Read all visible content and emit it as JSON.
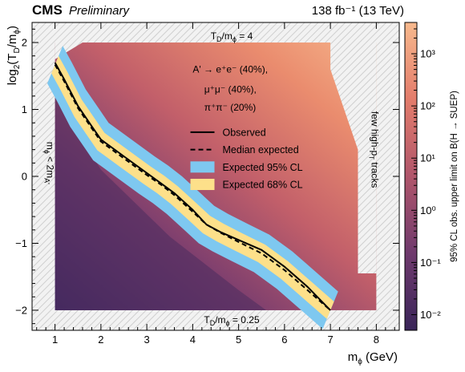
{
  "chart_data": {
    "type": "heatmap",
    "header": {
      "experiment": "CMS",
      "status": "Preliminary",
      "lumi": "138 fb⁻¹ (13 TeV)"
    },
    "xlabel": "m_ϕ (GeV)",
    "ylabel": "log₂(T_D/m_ϕ)",
    "zlabel": "95% CL obs. upper limit on B(H → SUEP)",
    "xlim": [
      0.5,
      8.5
    ],
    "ylim": [
      -2.3,
      2.3
    ],
    "zlim_log10": [
      -2.3,
      3.6
    ],
    "x_ticks": [
      1,
      2,
      3,
      4,
      5,
      6,
      7,
      8
    ],
    "y_ticks": [
      -2,
      -1,
      0,
      1,
      2
    ],
    "z_ticks_exp": [
      -2,
      -1,
      0,
      1,
      2,
      3
    ],
    "z_ticks_labels": [
      "10⁻²",
      "10⁻¹",
      "10⁰",
      "10¹",
      "10²",
      "10³"
    ],
    "region": {
      "xmin": 1,
      "xmax": 8,
      "ymin": -2,
      "ymax": 2
    },
    "annotations": {
      "top": "T_D/m_ϕ = 4",
      "bottom": "T_D/m_ϕ = 0.25",
      "left": "m_ϕ < 2m_A'",
      "right": "few high-p_T tracks",
      "decay_line1": "A' → e⁺e⁻ (40%),",
      "decay_line2": "μ⁺μ⁻ (40%),",
      "decay_line3": "π⁺π⁻ (20%)"
    },
    "legend": {
      "observed": "Observed",
      "median": "Median expected",
      "band95": "Expected 95% CL",
      "band68": "Expected 68% CL"
    },
    "colors": {
      "band95": "#7ec8f0",
      "band68": "#fde08a",
      "hatch": "#d9d9d9"
    },
    "observed": {
      "x": [
        1.0,
        1.2,
        1.5,
        1.8,
        2.0,
        2.5,
        3.0,
        3.3,
        3.6,
        4.0,
        4.3,
        4.6,
        5.0,
        5.5,
        6.0,
        6.5,
        7.0
      ],
      "y": [
        1.7,
        1.45,
        1.05,
        0.75,
        0.55,
        0.3,
        0.05,
        -0.1,
        -0.25,
        -0.5,
        -0.72,
        -0.83,
        -0.95,
        -1.1,
        -1.35,
        -1.65,
        -2.0
      ]
    },
    "expected": {
      "x": [
        1.0,
        1.2,
        1.5,
        1.8,
        2.0,
        2.5,
        3.0,
        3.3,
        3.6,
        4.0,
        4.3,
        4.6,
        5.0,
        5.5,
        6.0,
        6.5,
        7.0
      ],
      "y": [
        1.67,
        1.42,
        1.02,
        0.72,
        0.52,
        0.27,
        0.02,
        -0.12,
        -0.28,
        -0.53,
        -0.72,
        -0.84,
        -0.98,
        -1.15,
        -1.4,
        -1.7,
        -2.0
      ]
    },
    "band68_width": 0.13,
    "band95_width": 0.28
  }
}
